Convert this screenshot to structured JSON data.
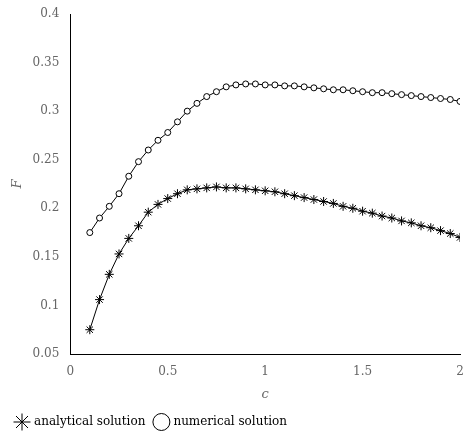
{
  "chart_data": {
    "type": "line",
    "xlabel": "c",
    "ylabel": "F",
    "x": [
      0.1,
      0.15,
      0.2,
      0.25,
      0.3,
      0.35,
      0.4,
      0.45,
      0.5,
      0.55,
      0.6,
      0.65,
      0.7,
      0.75,
      0.8,
      0.85,
      0.9,
      0.95,
      1.0,
      1.05,
      1.1,
      1.15,
      1.2,
      1.25,
      1.3,
      1.35,
      1.4,
      1.45,
      1.5,
      1.55,
      1.6,
      1.65,
      1.7,
      1.75,
      1.8,
      1.85,
      1.9,
      1.95,
      2.0
    ],
    "series": [
      {
        "name": "analytical solution",
        "color": "#000000",
        "marker": "star",
        "line_style": "solid",
        "values": [
          0.075,
          0.106,
          0.132,
          0.153,
          0.169,
          0.182,
          0.196,
          0.204,
          0.21,
          0.215,
          0.219,
          0.22,
          0.221,
          0.222,
          0.221,
          0.221,
          0.22,
          0.219,
          0.218,
          0.217,
          0.215,
          0.213,
          0.211,
          0.209,
          0.207,
          0.205,
          0.202,
          0.2,
          0.197,
          0.195,
          0.192,
          0.19,
          0.187,
          0.185,
          0.182,
          0.18,
          0.177,
          0.174,
          0.17
        ]
      },
      {
        "name": "numerical solution",
        "color": "#000000",
        "marker": "circle",
        "line_style": "solid",
        "values": [
          0.175,
          0.19,
          0.202,
          0.215,
          0.233,
          0.248,
          0.26,
          0.27,
          0.278,
          0.289,
          0.3,
          0.308,
          0.315,
          0.32,
          0.325,
          0.327,
          0.328,
          0.328,
          0.327,
          0.327,
          0.326,
          0.326,
          0.325,
          0.324,
          0.323,
          0.322,
          0.322,
          0.321,
          0.32,
          0.319,
          0.319,
          0.318,
          0.317,
          0.316,
          0.315,
          0.314,
          0.313,
          0.312,
          0.31
        ]
      }
    ],
    "xlim": [
      0,
      2.0
    ],
    "ylim": [
      0.05,
      0.4
    ],
    "xticks": [
      0,
      0.5,
      1.0,
      1.5,
      2.0
    ],
    "yticks": [
      0.05,
      0.1,
      0.15,
      0.2,
      0.25,
      0.3,
      0.35,
      0.4
    ],
    "grid": false,
    "legend": "bottom"
  }
}
